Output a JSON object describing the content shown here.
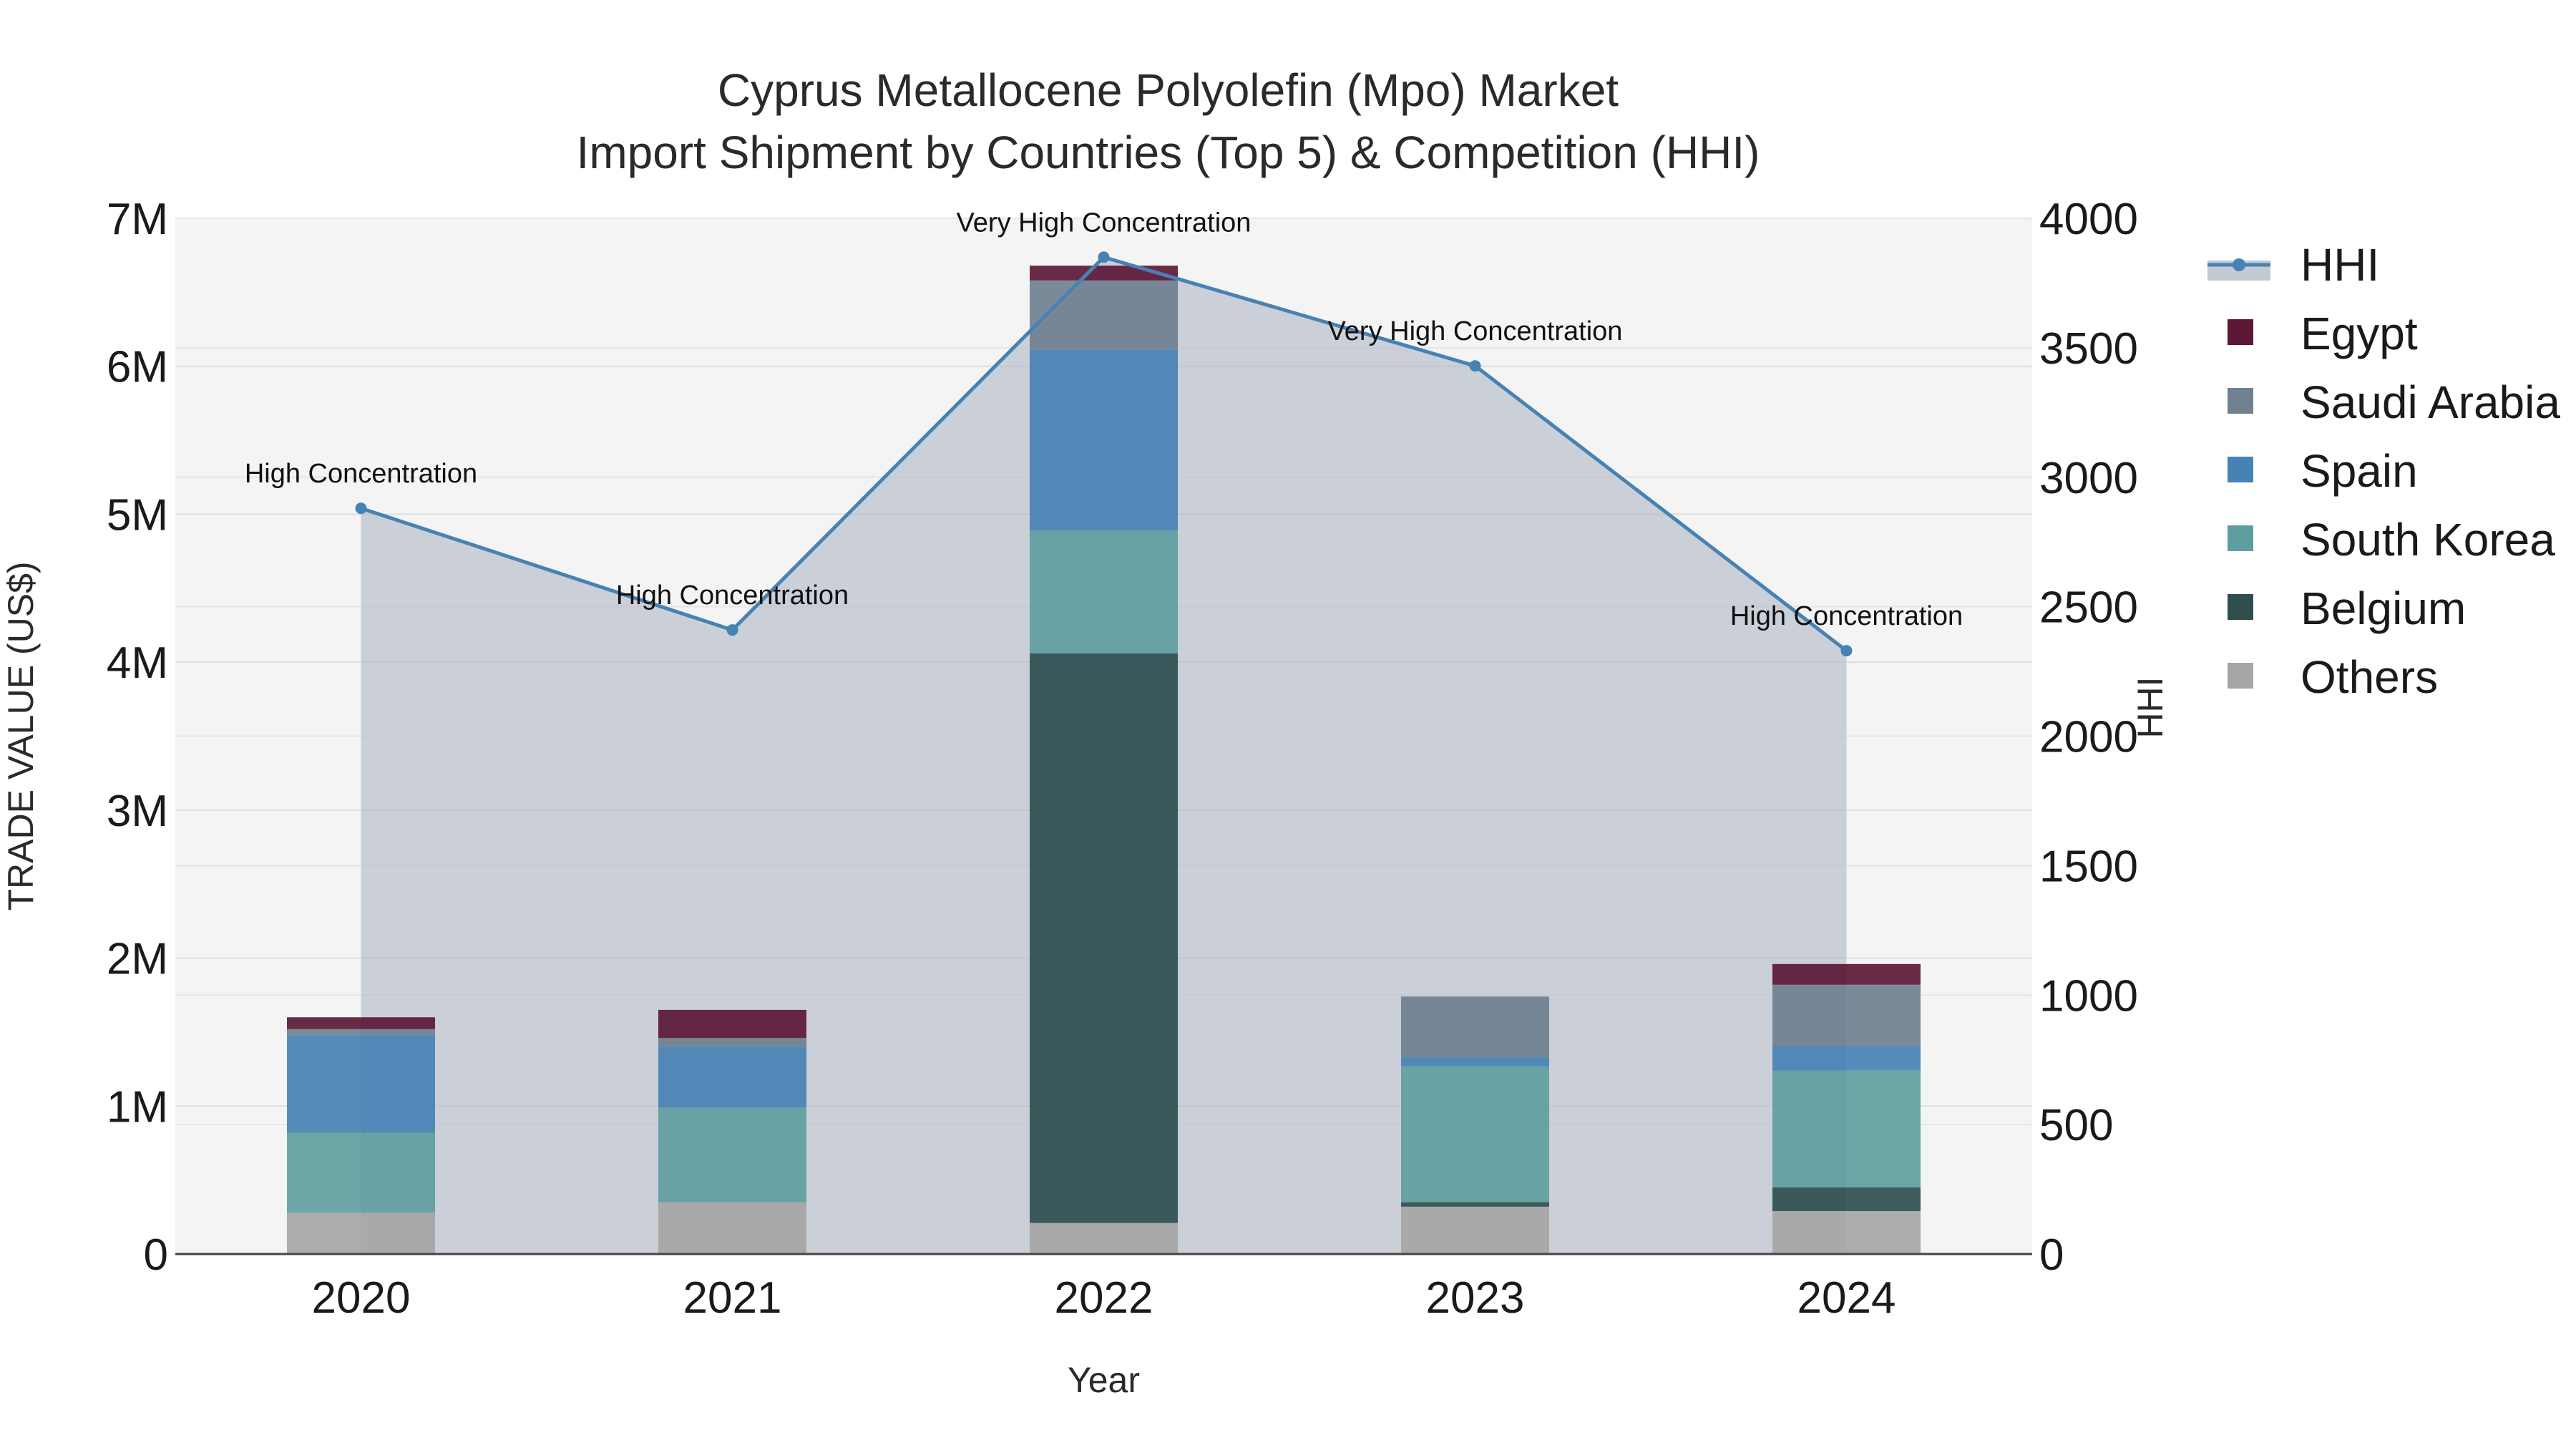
{
  "chart_data": {
    "type": "bar",
    "title_line1": "Cyprus Metallocene Polyolefin (Mpo) Market",
    "title_line2": "Import Shipment by Countries (Top 5) & Competition (HHI)",
    "xlabel": "Year",
    "ylabel": "TRADE VALUE (US$)",
    "y2label": "HHI",
    "categories": [
      "2020",
      "2021",
      "2022",
      "2023",
      "2024"
    ],
    "ylim": [
      0,
      7000000
    ],
    "y_ticks": [
      0,
      1000000,
      2000000,
      3000000,
      4000000,
      5000000,
      6000000,
      7000000
    ],
    "y_tick_labels": [
      "0",
      "1M",
      "2M",
      "3M",
      "4M",
      "5M",
      "6M",
      "7M"
    ],
    "y2lim": [
      0,
      4000
    ],
    "y2_ticks": [
      0,
      500,
      1000,
      1500,
      2000,
      2500,
      3000,
      3500,
      4000
    ],
    "y2_tick_labels": [
      "0",
      "500",
      "1000",
      "1500",
      "2000",
      "2500",
      "3000",
      "3500",
      "4000"
    ],
    "series": [
      {
        "name": "Others",
        "color": "#a6a6a6",
        "values": [
          280000,
          350000,
          210000,
          320000,
          290000
        ]
      },
      {
        "name": "Belgium",
        "color": "#2f4f4f",
        "values": [
          0,
          0,
          3850000,
          30000,
          160000
        ]
      },
      {
        "name": "South Korea",
        "color": "#5f9ea0",
        "values": [
          540000,
          640000,
          830000,
          920000,
          790000
        ]
      },
      {
        "name": "Spain",
        "color": "#4682b4",
        "values": [
          660000,
          410000,
          1220000,
          60000,
          170000
        ]
      },
      {
        "name": "Saudi Arabia",
        "color": "#708090",
        "values": [
          40000,
          60000,
          470000,
          410000,
          410000
        ]
      },
      {
        "name": "Egypt",
        "color": "#5c1836",
        "values": [
          80000,
          190000,
          100000,
          0,
          140000
        ]
      }
    ],
    "hhi": {
      "name": "HHI",
      "color": "#4682b4",
      "values": [
        2880,
        2410,
        3850,
        3430,
        2330
      ],
      "labels": [
        "High Concentration",
        "High Concentration",
        "Very High Concentration",
        "Very High Concentration",
        "High Concentration"
      ]
    },
    "legend": [
      "HHI",
      "Egypt",
      "Saudi Arabia",
      "Spain",
      "South Korea",
      "Belgium",
      "Others"
    ],
    "legend_position": "top-right",
    "grid": true
  }
}
